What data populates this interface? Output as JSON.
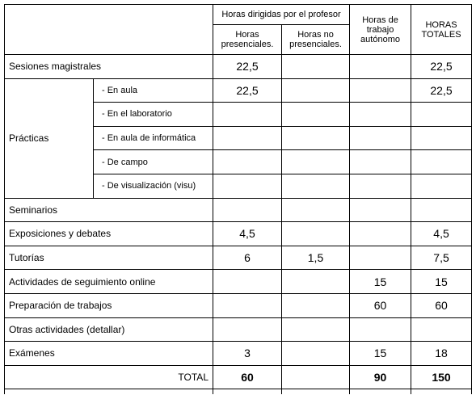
{
  "header": {
    "group": "Horas dirigidas por el profesor",
    "presenciales": "Horas presenciales.",
    "no_presenciales": "Horas no presenciales.",
    "autonomo": "Horas de trabajo autónomo",
    "totales": "HORAS TOTALES"
  },
  "rows": [
    {
      "label": "Sesiones magistrales",
      "values": [
        "22,5",
        null,
        null,
        "22,5"
      ]
    },
    {
      "label": "Prácticas",
      "sub": [
        {
          "label": "- En aula",
          "values": [
            "22,5",
            null,
            null,
            "22,5"
          ]
        },
        {
          "label": "- En el laboratorio",
          "values": [
            null,
            null,
            null,
            null
          ]
        },
        {
          "label": "- En aula de informática",
          "values": [
            null,
            null,
            null,
            null
          ]
        },
        {
          "label": "- De campo",
          "values": [
            null,
            null,
            null,
            null
          ]
        },
        {
          "label": "- De visualización (visu)",
          "values": [
            null,
            null,
            null,
            null
          ]
        }
      ]
    },
    {
      "label": "Seminarios",
      "values": [
        null,
        null,
        null,
        null
      ]
    },
    {
      "label": "Exposiciones y debates",
      "values": [
        "4,5",
        null,
        null,
        "4,5"
      ]
    },
    {
      "label": "Tutorías",
      "values": [
        "6",
        "1,5",
        null,
        "7,5"
      ]
    },
    {
      "label": "Actividades de seguimiento online",
      "values": [
        null,
        null,
        "15",
        "15"
      ]
    },
    {
      "label": "Preparación de trabajos",
      "values": [
        null,
        null,
        "60",
        "60"
      ]
    },
    {
      "label": "Otras actividades (detallar)",
      "values": [
        null,
        null,
        null,
        null
      ]
    },
    {
      "label": "Exámenes",
      "values": [
        "3",
        null,
        "15",
        "18"
      ]
    }
  ],
  "total": {
    "label": "TOTAL",
    "values": [
      "60",
      null,
      "90",
      "150"
    ]
  }
}
